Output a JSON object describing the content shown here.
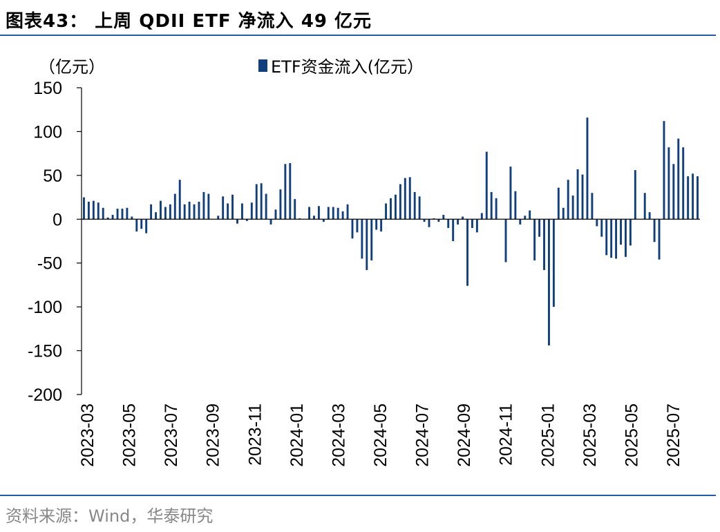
{
  "header": {
    "title": "图表43：  上周 QDII ETF 净流入 49 亿元"
  },
  "footer": {
    "source": "资料来源：Wind，华泰研究"
  },
  "colors": {
    "bar": "#0f3f7e",
    "rule": "#1f5ba6",
    "source_text": "#888888"
  },
  "chart_data": {
    "type": "bar",
    "title": "上周 QDII ETF 净流入 49 亿元",
    "unit_label": "（亿元）",
    "legend": "ETF资金流入(亿元）",
    "ylim": [
      -200,
      150
    ],
    "yticks": [
      150,
      100,
      50,
      0,
      -50,
      -100,
      -150,
      -200
    ],
    "xtick_labels": [
      "2023-03",
      "2023-05",
      "2023-07",
      "2023-09",
      "2023-11",
      "2024-01",
      "2024-03",
      "2024-05",
      "2024-07",
      "2024-09",
      "2024-11",
      "2025-01",
      "2025-03",
      "2025-05",
      "2025-07"
    ],
    "series": [
      {
        "name": "ETF资金流入(亿元）",
        "values": [
          25,
          20,
          21,
          19,
          13,
          2,
          5,
          12,
          12,
          13,
          3,
          -14,
          -11,
          -16,
          17,
          8,
          21,
          14,
          17,
          29,
          45,
          17,
          20,
          17,
          20,
          31,
          29,
          0,
          4,
          26,
          18,
          28,
          -5,
          18,
          -2,
          19,
          40,
          41,
          29,
          -6,
          11,
          34,
          63,
          64,
          23,
          1,
          0,
          14,
          4,
          15,
          -3,
          14,
          14,
          13,
          9,
          17,
          -22,
          -15,
          -45,
          -58,
          -47,
          -12,
          -14,
          18,
          24,
          28,
          40,
          47,
          48,
          31,
          26,
          -3,
          -9,
          1,
          -3,
          5,
          -10,
          -25,
          -6,
          3,
          -76,
          -10,
          -15,
          7,
          77,
          31,
          24,
          0,
          -49,
          60,
          32,
          -6,
          4,
          10,
          -47,
          -20,
          -58,
          -144,
          -100,
          36,
          13,
          45,
          27,
          57,
          51,
          116,
          30,
          -8,
          -20,
          -41,
          -44,
          -45,
          -29,
          -43,
          -30,
          56,
          0,
          30,
          8,
          -26,
          -46,
          112,
          82,
          63,
          92,
          82,
          49,
          52,
          49
        ]
      }
    ]
  }
}
